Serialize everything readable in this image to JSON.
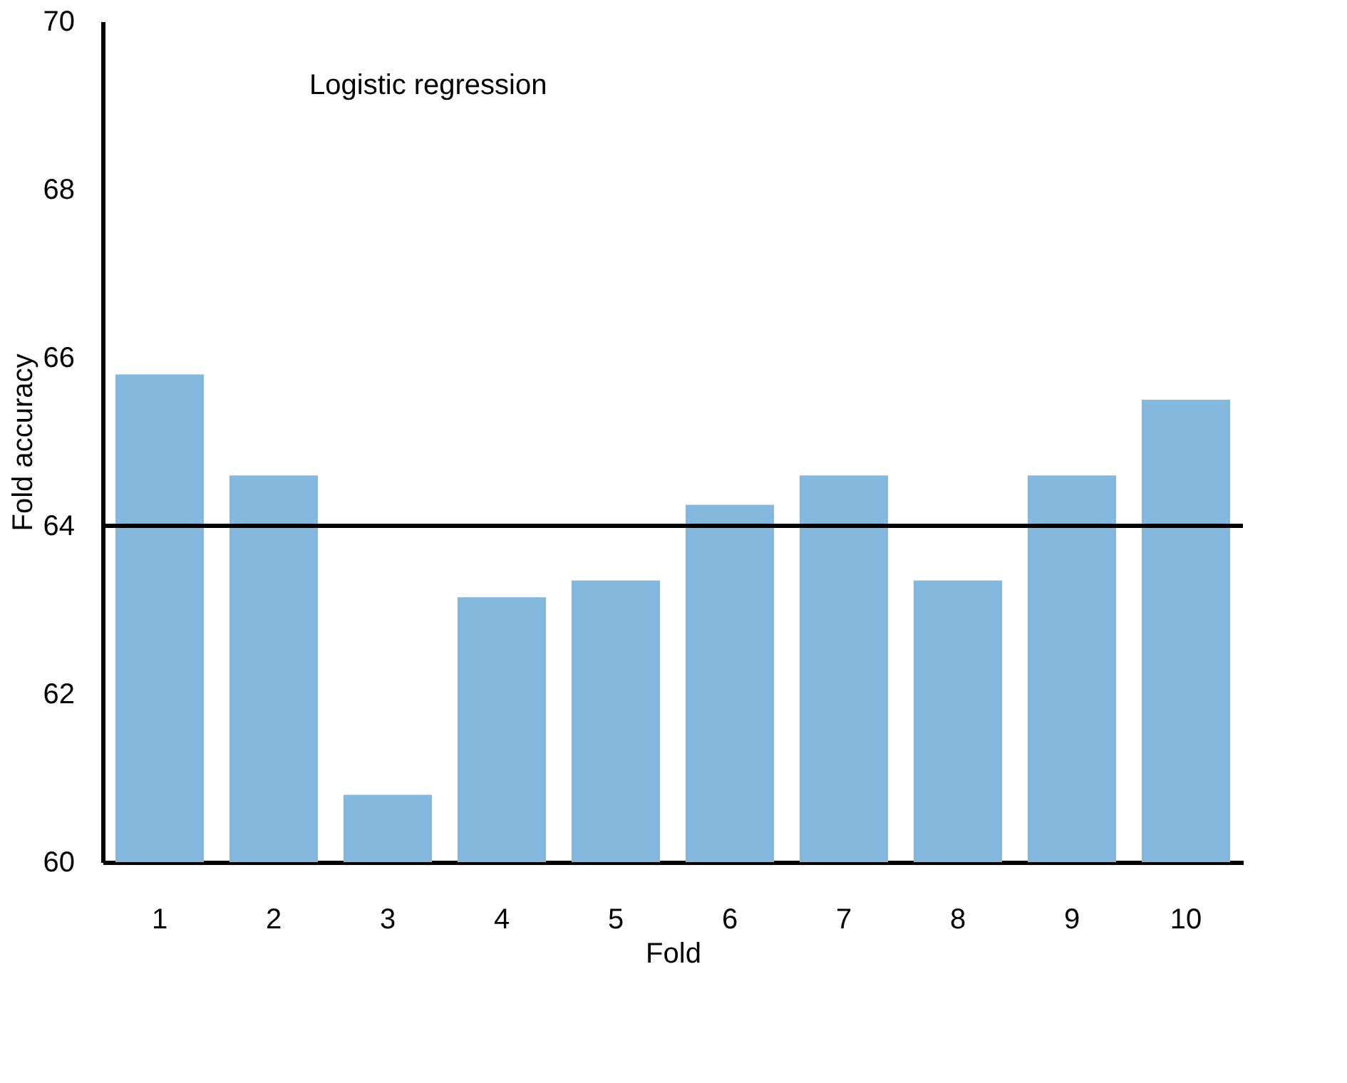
{
  "chart_data": {
    "type": "bar",
    "categories": [
      "1",
      "2",
      "3",
      "4",
      "5",
      "6",
      "7",
      "8",
      "9",
      "10"
    ],
    "series": [
      {
        "color": "#85b8dd",
        "values": [
          65.8,
          64.6,
          60.8,
          63.15,
          63.35,
          64.25,
          64.6,
          63.35,
          64.6,
          65.5
        ]
      }
    ],
    "xlabel": "Fold",
    "ylabel": "Fold accuracy",
    "ylim": [
      60,
      70
    ],
    "yticks": [
      60,
      62,
      64,
      66,
      68,
      70
    ],
    "ref_lines": [
      {
        "axis": "y",
        "value": 64,
        "color": "#000000"
      }
    ],
    "annotations": [
      "Logistic regression"
    ],
    "grid": false
  }
}
